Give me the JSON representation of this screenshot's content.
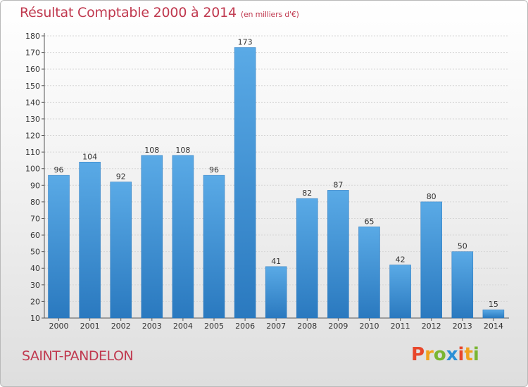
{
  "header": {
    "title": "Résultat Comptable 2000 à 2014",
    "subtitle": "(en milliers d'€)"
  },
  "footer": {
    "place": "SAINT-PANDELON",
    "logo": "Proxiti",
    "logo_letters": [
      {
        "char": "P",
        "color": "#e8472b"
      },
      {
        "char": "r",
        "color": "#f0a21c"
      },
      {
        "char": "o",
        "color": "#7ab632"
      },
      {
        "char": "x",
        "color": "#2c8fd6"
      },
      {
        "char": "i",
        "color": "#e8472b"
      },
      {
        "char": "t",
        "color": "#f0a21c"
      },
      {
        "char": "i",
        "color": "#7ab632"
      }
    ]
  },
  "chart_data": {
    "type": "bar",
    "categories": [
      "2000",
      "2001",
      "2002",
      "2003",
      "2004",
      "2005",
      "2006",
      "2007",
      "2008",
      "2009",
      "2010",
      "2011",
      "2012",
      "2013",
      "2014"
    ],
    "values": [
      96,
      104,
      92,
      108,
      108,
      96,
      173,
      41,
      82,
      87,
      65,
      42,
      80,
      50,
      15
    ],
    "ylim": [
      10,
      180
    ],
    "yticks": [
      10,
      20,
      30,
      40,
      50,
      60,
      70,
      80,
      90,
      100,
      110,
      120,
      130,
      140,
      150,
      160,
      170,
      180
    ],
    "grid": true,
    "colors": {
      "bar_top": "#5aaae6",
      "bar_bottom": "#2a79bf",
      "title": "#c0394f"
    }
  }
}
